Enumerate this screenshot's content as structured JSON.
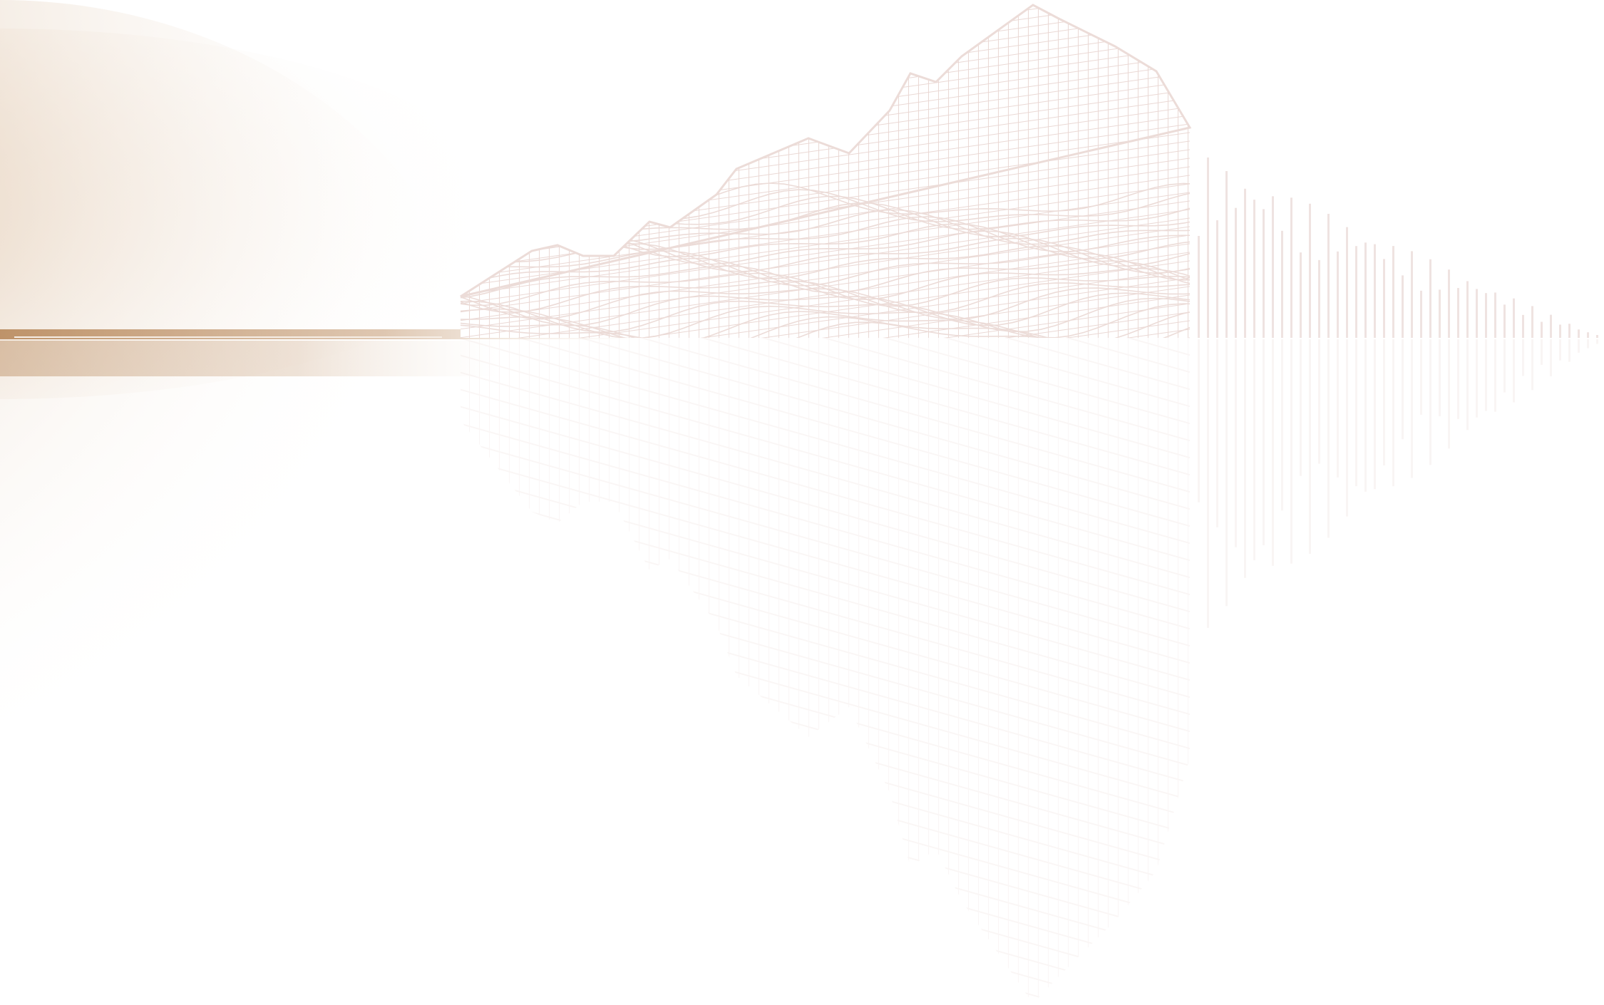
{
  "artwork": {
    "subject": "wireframe-mountain-with-reflection",
    "colors": {
      "background": "#ffffff",
      "haze": "#b8895c",
      "haze_light": "#e9d6c2",
      "wire": "#ecdcd8",
      "horizon": "#c9a27e",
      "bars": "#efe3e1"
    }
  }
}
